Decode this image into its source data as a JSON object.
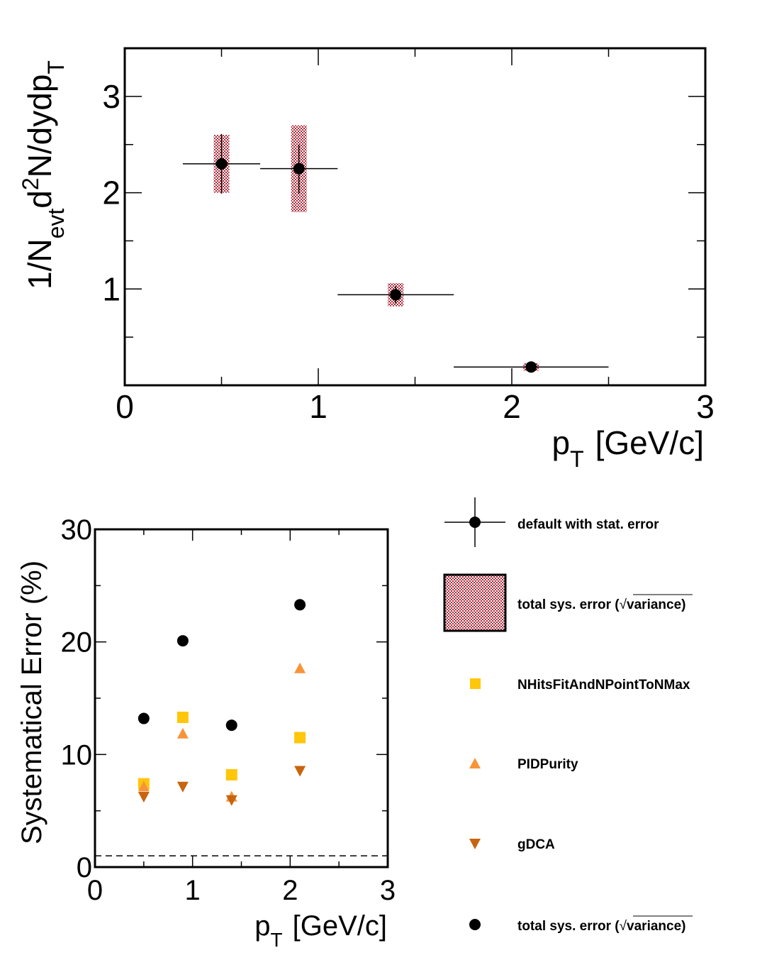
{
  "chart_data": [
    {
      "type": "scatter",
      "title": "",
      "xlabel_main": "p",
      "xlabel_sub": "T",
      "xlabel_unit": "[GeV/c]",
      "ylabel_parts": [
        "1/N",
        "evt",
        "d",
        "2",
        "N/dydp",
        "T"
      ],
      "xlim": [
        0,
        3
      ],
      "ylim": [
        0,
        3.5
      ],
      "x_ticks": [
        "0",
        "1",
        "2",
        "3"
      ],
      "y_ticks": [
        "1",
        "2",
        "3"
      ],
      "x_tick_values": [
        0,
        1,
        2,
        3
      ],
      "y_tick_values": [
        1,
        2,
        3
      ],
      "points": [
        {
          "x": 0.5,
          "y": 2.3,
          "xerr": [
            0.3,
            0.7
          ],
          "stat": [
            1.99,
            2.61
          ],
          "sys": [
            2.0,
            2.6
          ]
        },
        {
          "x": 0.9,
          "y": 2.25,
          "xerr": [
            0.7,
            1.1
          ],
          "stat": [
            1.99,
            2.5
          ],
          "sys": [
            1.8,
            2.7
          ]
        },
        {
          "x": 1.4,
          "y": 0.94,
          "xerr": [
            1.1,
            1.7
          ],
          "stat": [
            0.85,
            1.03
          ],
          "sys": [
            0.82,
            1.06
          ]
        },
        {
          "x": 2.1,
          "y": 0.19,
          "xerr": [
            1.7,
            2.5
          ],
          "stat": [
            0.17,
            0.21
          ],
          "sys": [
            0.15,
            0.23
          ]
        }
      ]
    },
    {
      "type": "scatter",
      "title": "",
      "xlabel_main": "p",
      "xlabel_sub": "T",
      "xlabel_unit": "[GeV/c]",
      "ylabel": "Systematical Error (%)",
      "xlim": [
        0,
        3
      ],
      "ylim": [
        0,
        30
      ],
      "x_ticks": [
        "0",
        "1",
        "2",
        "3"
      ],
      "y_ticks": [
        "0",
        "10",
        "20",
        "30"
      ],
      "x_tick_values": [
        0,
        1,
        2,
        3
      ],
      "y_tick_values": [
        0,
        10,
        20,
        30
      ],
      "reference_line": 1.0,
      "x": [
        0.5,
        0.9,
        1.4,
        2.1
      ],
      "series": [
        {
          "name": "NHitsFitAndNPointToNMax",
          "marker": "square",
          "color": "#FFC60A",
          "values": [
            7.4,
            13.3,
            8.2,
            11.5
          ]
        },
        {
          "name": "PIDPurity",
          "marker": "triangle-up",
          "color": "#F7943A",
          "values": [
            7.1,
            11.8,
            6.2,
            17.6
          ]
        },
        {
          "name": "gDCA",
          "marker": "triangle-down",
          "color": "#C8640E",
          "values": [
            6.3,
            7.2,
            6.0,
            8.6
          ]
        },
        {
          "name": "total sys. error (",
          "name_sqrt": "variance",
          "name_close": ")",
          "marker": "circle",
          "color": "#000000",
          "values": [
            13.2,
            20.1,
            12.6,
            23.3
          ]
        }
      ]
    }
  ],
  "legend": {
    "default": "default with stat. error",
    "total_box_prefix": "total sys. error (",
    "total_box_sqrt": "variance",
    "total_box_suffix": ")",
    "nhits": "NHitsFitAndNPointToNMax",
    "pid": "PIDPurity",
    "gdca": "gDCA",
    "total_pt_prefix": "total sys. error (",
    "total_pt_sqrt": "variance",
    "total_pt_suffix": ")"
  },
  "colors": {
    "sys_box": "#B02A3A",
    "nhits": "#FFC60A",
    "pid": "#F7943A",
    "gdca": "#C8640E"
  }
}
